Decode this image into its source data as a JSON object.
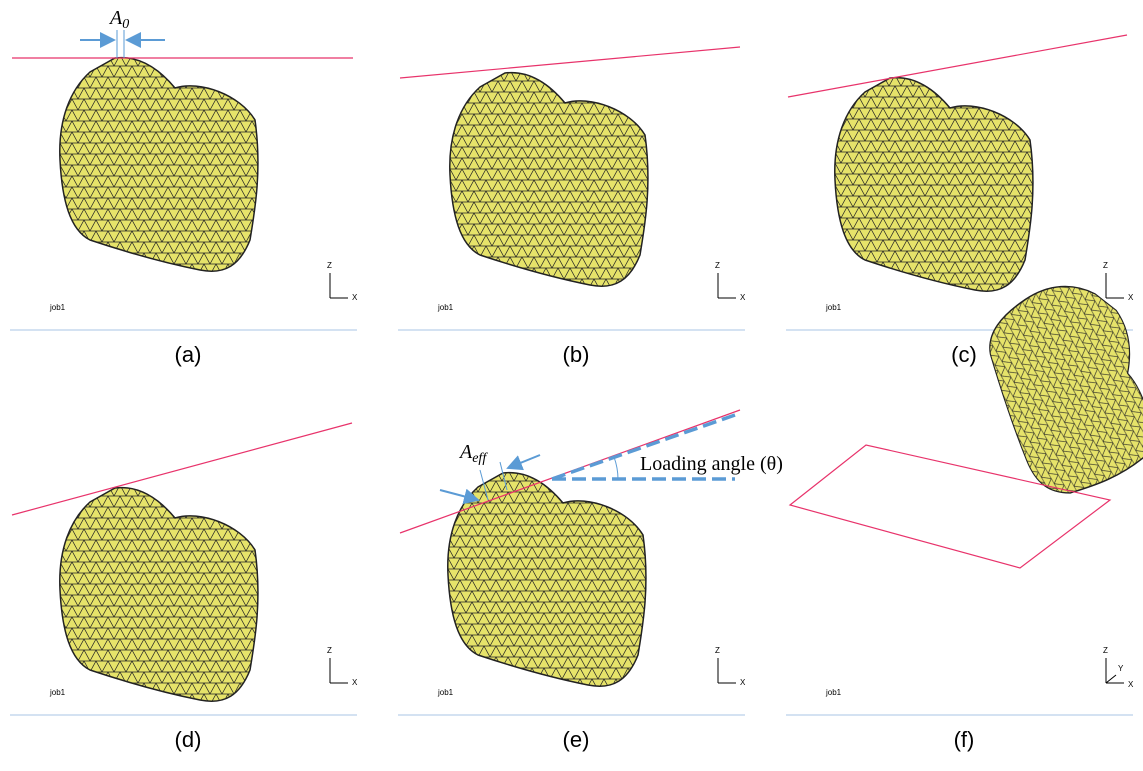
{
  "panels": [
    {
      "caption": "(a)",
      "job": "job1",
      "axes": [
        "Z",
        "X"
      ]
    },
    {
      "caption": "(b)",
      "job": "job1",
      "axes": [
        "Z",
        "X"
      ]
    },
    {
      "caption": "(c)",
      "job": "job1",
      "axes": [
        "Z",
        "X"
      ]
    },
    {
      "caption": "(d)",
      "job": "job1",
      "axes": [
        "Z",
        "X"
      ]
    },
    {
      "caption": "(e)",
      "job": "job1",
      "axes": [
        "Z",
        "X"
      ]
    },
    {
      "caption": "(f)",
      "job": "job1",
      "axes": [
        "Z",
        "Y",
        "X"
      ]
    }
  ],
  "annotations": {
    "a0": {
      "base": "A",
      "sub": "0"
    },
    "aeff": {
      "base": "A",
      "sub": "eff"
    },
    "loading_angle": "Loading angle (θ)"
  }
}
